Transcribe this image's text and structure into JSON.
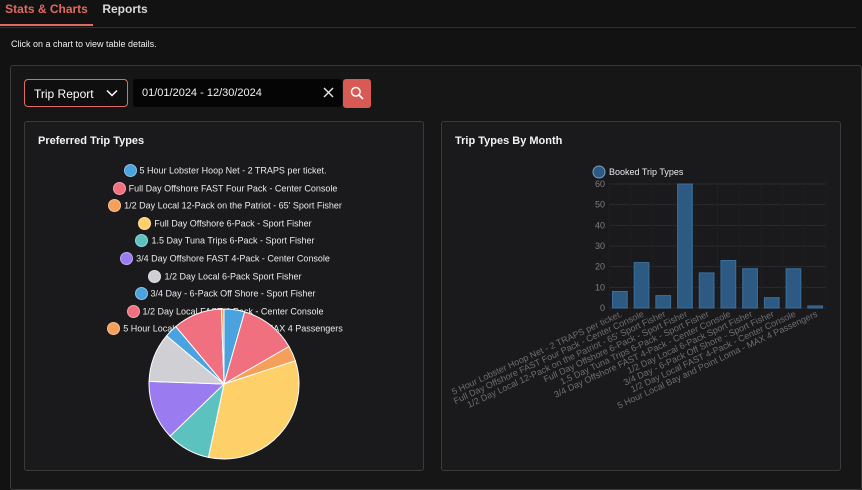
{
  "tabs": [
    {
      "label": "Stats & Charts",
      "active": true
    },
    {
      "label": "Reports",
      "active": false
    }
  ],
  "hint": "Click on a chart to view table details.",
  "filters": {
    "report_type": "Trip Report",
    "date_range": "01/01/2024 - 12/30/2024"
  },
  "colors": {
    "accent": "#e06a63",
    "bar": "#2d5a82"
  },
  "icons": {
    "dropdown": "chevron-down-icon",
    "clear": "close-icon",
    "search": "search-icon"
  },
  "pie_card": {
    "title": "Preferred Trip Types",
    "chart_data": {
      "type": "pie",
      "legend_position": "top",
      "slices": [
        {
          "label": "5 Hour Lobster Hoop Net - 2 TRAPS per ticket.",
          "value": 8,
          "color": "#4aa3df"
        },
        {
          "label": "Full Day Offshore FAST Four Pack - Center Console",
          "value": 22,
          "color": "#f07080"
        },
        {
          "label": "1/2 Day Local 12-Pack on the Patriot - 65' Sport Fisher",
          "value": 6,
          "color": "#f5a05a"
        },
        {
          "label": "Full Day Offshore 6-Pack - Sport Fisher",
          "value": 60,
          "color": "#fdd06a"
        },
        {
          "label": "1.5 Day Tuna Trips 6-Pack - Sport Fisher",
          "value": 17,
          "color": "#5cc2c0"
        },
        {
          "label": "3/4 Day Offshore FAST 4-Pack - Center Console",
          "value": 23,
          "color": "#9b7bf0"
        },
        {
          "label": "1/2 Day Local 6-Pack Sport Fisher",
          "value": 19,
          "color": "#cfcfd4"
        },
        {
          "label": "3/4 Day  - 6-Pack Off Shore - Sport Fisher",
          "value": 5,
          "color": "#4aa3df"
        },
        {
          "label": "1/2 Day Local FAST 4-Pack - Center Console",
          "value": 19,
          "color": "#f07080"
        },
        {
          "label": "5 Hour Local Bay and Point Loma - MAX 4 Passengers",
          "value": 1,
          "color": "#f5a05a"
        }
      ]
    }
  },
  "bar_card": {
    "title": "Trip Types By Month",
    "chart_data": {
      "type": "bar",
      "categories": [
        "5 Hour Lobster Hoop Net - 2 TRAPS per ticket.",
        "Full Day Offshore FAST Four Pack - Center Console",
        "1/2 Day Local 12-Pack on the Patriot - 65' Sport Fisher",
        "Full Day Offshore 6-Pack - Sport Fisher",
        "1.5 Day Tuna Trips 6-Pack - Sport Fisher",
        "3/4 Day Offshore FAST 4-Pack - Center Console",
        "1/2 Day Local 6-Pack Sport Fisher",
        "3/4 Day  - 6-Pack Off Shore - Sport Fisher",
        "1/2 Day Local FAST 4-Pack - Center Console",
        "5 Hour Local Bay and Point Loma - MAX 4 Passengers"
      ],
      "series": [
        {
          "name": "Booked Trip Types",
          "values": [
            8,
            22,
            6,
            60,
            17,
            23,
            19,
            5,
            19,
            1
          ]
        }
      ],
      "ylim": [
        0,
        60
      ],
      "yticks": [
        0,
        10,
        20,
        30,
        40,
        50,
        60
      ],
      "legend_position": "top",
      "grid": true
    }
  }
}
